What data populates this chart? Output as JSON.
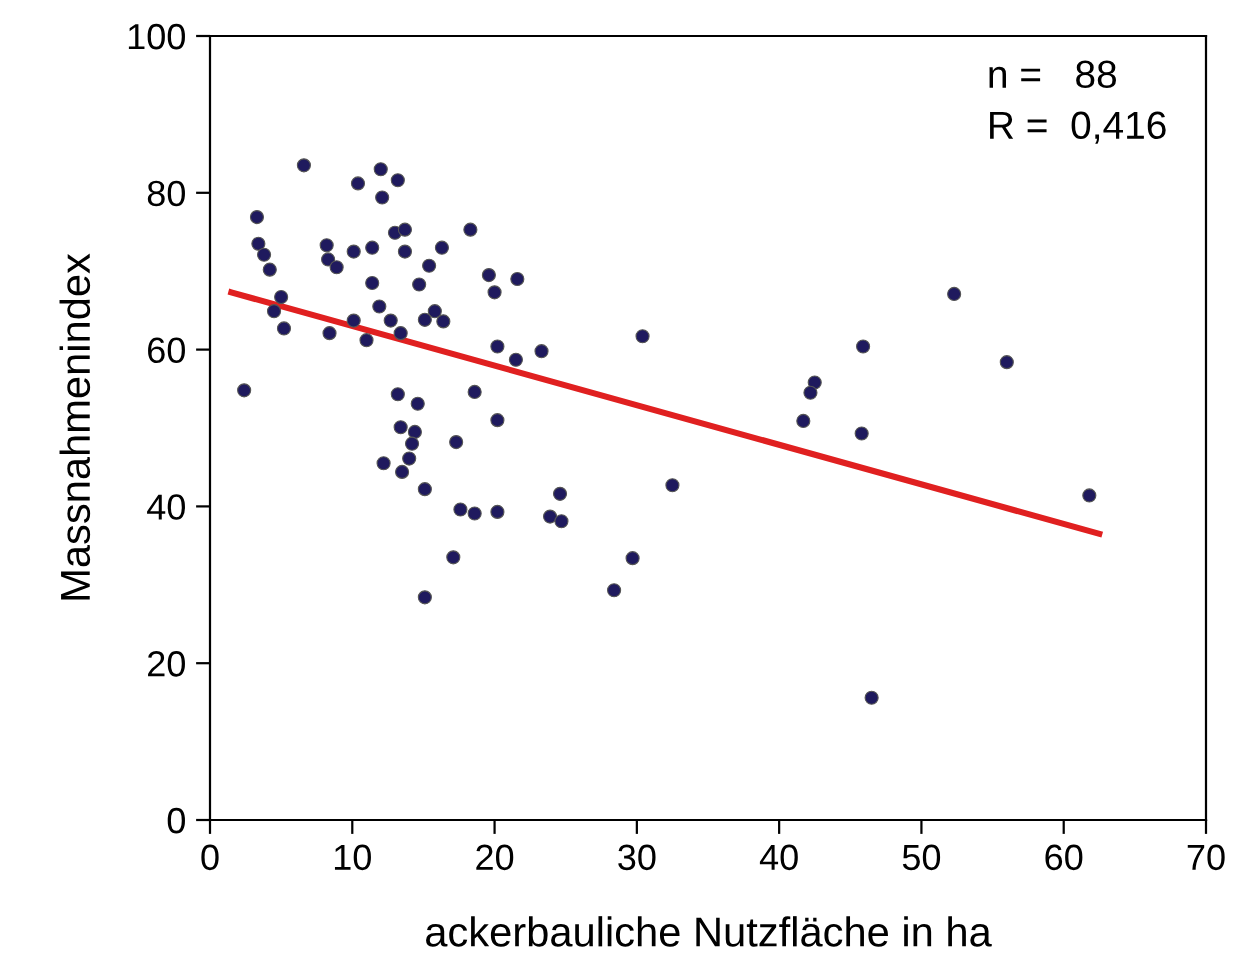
{
  "chart_data": {
    "type": "scatter",
    "xlabel": "ackerbauliche Nutzfläche in ha",
    "ylabel": "Massnahmenindex",
    "xlim": [
      0,
      70
    ],
    "xticks": [
      0,
      10,
      20,
      30,
      40,
      50,
      60,
      70
    ],
    "ylim": [
      0,
      100
    ],
    "yticks": [
      0,
      20,
      40,
      60,
      80,
      100
    ],
    "grid": false,
    "annotations": [
      "n =   88",
      "R =  0,416"
    ],
    "series": [
      {
        "marker": "circle",
        "color": "#1f1a5e",
        "x": [
          6.6,
          12.0,
          10.4,
          13.2,
          12.1,
          3.3,
          18.3,
          13.0,
          13.7,
          3.4,
          8.2,
          3.8,
          8.3,
          10.1,
          11.4,
          13.7,
          16.3,
          8.9,
          4.2,
          15.4,
          19.6,
          21.6,
          20.0,
          11.4,
          14.7,
          5.0,
          4.5,
          11.9,
          15.8,
          15.1,
          16.4,
          12.7,
          10.1,
          5.2,
          8.4,
          11.0,
          13.4,
          20.2,
          21.5,
          23.3,
          2.4,
          13.2,
          14.6,
          18.6,
          20.2,
          13.4,
          14.4,
          14.2,
          17.3,
          14.0,
          12.2,
          13.5,
          15.1,
          24.6,
          17.6,
          18.6,
          20.2,
          23.9,
          24.7,
          17.1,
          15.1,
          30.4,
          45.9,
          56.0,
          42.5,
          42.2,
          41.7,
          45.8,
          61.8,
          32.5,
          29.7,
          28.4,
          46.5,
          52.3
        ],
        "values": [
          83.5,
          83.0,
          81.2,
          81.6,
          79.4,
          76.9,
          75.3,
          74.9,
          75.3,
          73.5,
          73.3,
          72.1,
          71.5,
          72.5,
          73.0,
          72.5,
          73.0,
          70.5,
          70.2,
          70.7,
          69.5,
          69.0,
          67.3,
          68.5,
          68.3,
          66.7,
          64.9,
          65.5,
          64.9,
          63.8,
          63.6,
          63.7,
          63.7,
          62.7,
          62.1,
          61.2,
          62.1,
          60.4,
          58.7,
          59.8,
          54.8,
          54.3,
          53.1,
          54.6,
          51.0,
          50.1,
          49.5,
          48.0,
          48.2,
          46.1,
          45.5,
          44.4,
          42.2,
          41.6,
          39.6,
          39.1,
          39.3,
          38.7,
          38.1,
          33.5,
          28.4,
          61.7,
          60.4,
          58.4,
          55.8,
          54.5,
          50.9,
          49.3,
          41.4,
          42.7,
          33.4,
          29.3,
          15.6,
          67.1
        ]
      },
      {
        "type": "line",
        "marker": "none",
        "color": "#e02020",
        "x": [
          1.5,
          62.5
        ],
        "values": [
          67.3,
          36.5
        ]
      }
    ]
  }
}
